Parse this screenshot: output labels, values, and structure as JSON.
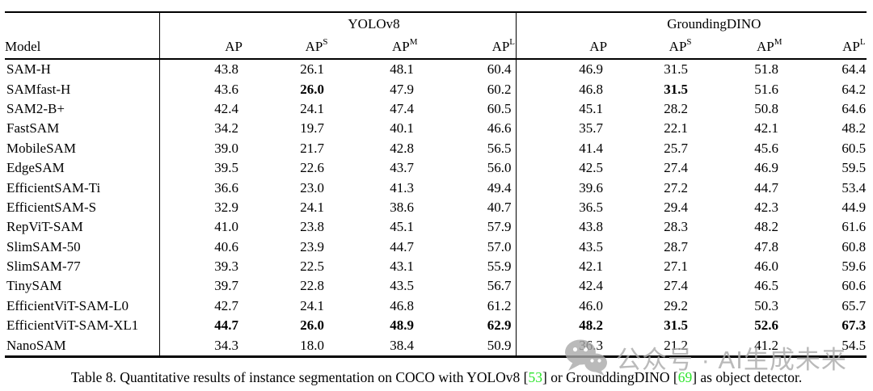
{
  "table": {
    "groups": [
      {
        "label": "YOLOv8"
      },
      {
        "label": "GroundingDINO"
      }
    ],
    "model_header": "Model",
    "metric_headers": [
      {
        "base": "AP",
        "sup": ""
      },
      {
        "base": "AP",
        "sup": "S"
      },
      {
        "base": "AP",
        "sup": "M"
      },
      {
        "base": "AP",
        "sup": "L"
      }
    ],
    "rows": [
      {
        "model": "SAM-H",
        "values": [
          "43.8",
          "26.1",
          "48.1",
          "60.4",
          "46.9",
          "31.5",
          "51.8",
          "64.4"
        ],
        "bold": []
      },
      {
        "model": "SAMfast-H",
        "values": [
          "43.6",
          "26.0",
          "47.9",
          "60.2",
          "46.8",
          "31.5",
          "51.6",
          "64.2"
        ],
        "bold": [
          1,
          5
        ]
      },
      {
        "model": "SAM2-B+",
        "values": [
          "42.4",
          "24.1",
          "47.4",
          "60.5",
          "45.1",
          "28.2",
          "50.8",
          "64.6"
        ],
        "bold": []
      },
      {
        "model": "FastSAM",
        "values": [
          "34.2",
          "19.7",
          "40.1",
          "46.6",
          "35.7",
          "22.1",
          "42.1",
          "48.2"
        ],
        "bold": []
      },
      {
        "model": "MobileSAM",
        "values": [
          "39.0",
          "21.7",
          "42.8",
          "56.5",
          "41.4",
          "25.7",
          "45.6",
          "60.5"
        ],
        "bold": []
      },
      {
        "model": "EdgeSAM",
        "values": [
          "39.5",
          "22.6",
          "43.7",
          "56.0",
          "42.5",
          "27.4",
          "46.9",
          "59.5"
        ],
        "bold": []
      },
      {
        "model": "EfficientSAM-Ti",
        "values": [
          "36.6",
          "23.0",
          "41.3",
          "49.4",
          "39.6",
          "27.2",
          "44.7",
          "53.4"
        ],
        "bold": []
      },
      {
        "model": "EfficientSAM-S",
        "values": [
          "32.9",
          "24.1",
          "38.6",
          "40.7",
          "36.5",
          "29.4",
          "42.3",
          "44.9"
        ],
        "bold": []
      },
      {
        "model": "RepViT-SAM",
        "values": [
          "41.0",
          "23.8",
          "45.1",
          "57.9",
          "43.8",
          "28.3",
          "48.2",
          "61.6"
        ],
        "bold": []
      },
      {
        "model": "SlimSAM-50",
        "values": [
          "40.6",
          "23.9",
          "44.7",
          "57.0",
          "43.5",
          "28.7",
          "47.8",
          "60.8"
        ],
        "bold": []
      },
      {
        "model": "SlimSAM-77",
        "values": [
          "39.3",
          "22.5",
          "43.1",
          "55.9",
          "42.1",
          "27.1",
          "46.0",
          "59.6"
        ],
        "bold": []
      },
      {
        "model": "TinySAM",
        "values": [
          "39.7",
          "22.8",
          "43.5",
          "56.7",
          "42.4",
          "27.4",
          "46.5",
          "60.6"
        ],
        "bold": []
      },
      {
        "model": "EfficientViT-SAM-L0",
        "values": [
          "42.7",
          "24.1",
          "46.8",
          "61.2",
          "46.0",
          "29.2",
          "50.3",
          "65.7"
        ],
        "bold": []
      },
      {
        "model": "EfficientViT-SAM-XL1",
        "values": [
          "44.7",
          "26.0",
          "48.9",
          "62.9",
          "48.2",
          "31.5",
          "52.6",
          "67.3"
        ],
        "bold": [
          0,
          1,
          2,
          3,
          4,
          5,
          6,
          7
        ]
      },
      {
        "model": "NanoSAM",
        "values": [
          "34.3",
          "18.0",
          "38.4",
          "50.9",
          "36.3",
          "21.2",
          "41.2",
          "54.5"
        ],
        "bold": []
      }
    ]
  },
  "caption": {
    "citation_color": "#2ce52c",
    "parts": [
      {
        "text": "Table 8. Quantitative results of instance segmentation on COCO with YOLOv8 ["
      },
      {
        "text": "53",
        "cite": true
      },
      {
        "text": "] or GrounddingDINO ["
      },
      {
        "text": "69",
        "cite": true
      },
      {
        "text": "] as object detector."
      }
    ]
  },
  "watermark": {
    "icon": "wechat-bubbles-icon",
    "text": "公众号 · AI生成未来",
    "color": "#a9a9a9"
  }
}
